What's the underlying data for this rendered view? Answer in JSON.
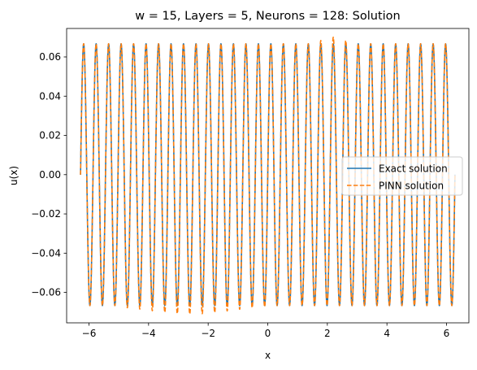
{
  "chart_data": {
    "type": "line",
    "title": "w = 15, Layers = 5, Neurons = 128: Solution",
    "xlabel": "x",
    "ylabel": "u(x)",
    "xlim": [
      -6.75,
      6.75
    ],
    "ylim": [
      -0.0755,
      0.0745
    ],
    "xticks": [
      -6,
      -4,
      -2,
      0,
      2,
      4,
      6
    ],
    "xtick_labels": [
      "−6",
      "−4",
      "−2",
      "0",
      "2",
      "4",
      "6"
    ],
    "yticks": [
      -0.06,
      -0.04,
      -0.02,
      0.0,
      0.02,
      0.04,
      0.06
    ],
    "ytick_labels": [
      "−0.06",
      "−0.04",
      "−0.02",
      "0.00",
      "0.02",
      "0.04",
      "0.06"
    ],
    "grid": false,
    "legend_position": "center-right",
    "x_range": [
      -6.2832,
      6.2832
    ],
    "series": [
      {
        "name": "Exact solution",
        "color": "#1f77b4",
        "style": "solid",
        "function": "u(x) = (1/15)·sin(15x)",
        "amplitude": 0.0667,
        "frequency": 15
      },
      {
        "name": "PINN solution",
        "color": "#ff7f0e",
        "style": "dashed",
        "description_of_fit": "follows exact solution, minima overshoot to about −0.071 for x in [−5, 0], maxima overshoot to about 0.070 for x in [1.7, 2.7]",
        "amplitude": 0.0667,
        "frequency": 15
      }
    ]
  }
}
